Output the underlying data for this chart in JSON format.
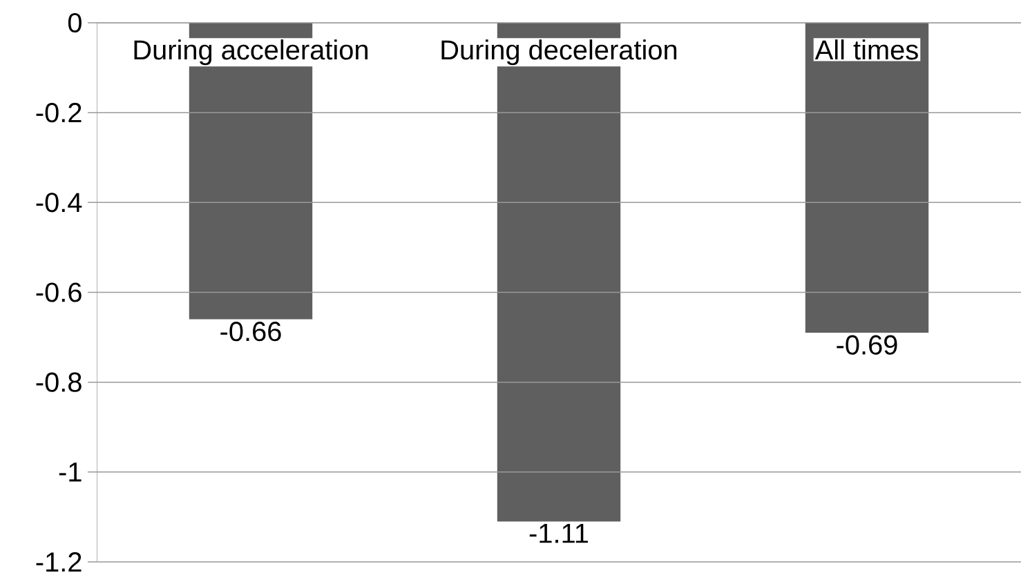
{
  "chart_data": {
    "type": "bar",
    "categories": [
      "During acceleration",
      "During deceleration",
      "All times"
    ],
    "values": [
      -0.66,
      -1.11,
      -0.69
    ],
    "color": "#5f5f5f",
    "ylim": [
      -1.2,
      0
    ],
    "yticks": [
      -1.2,
      -1,
      -0.8,
      -0.6,
      -0.4,
      -0.2,
      0
    ],
    "grid": "y",
    "data_labels": true
  }
}
